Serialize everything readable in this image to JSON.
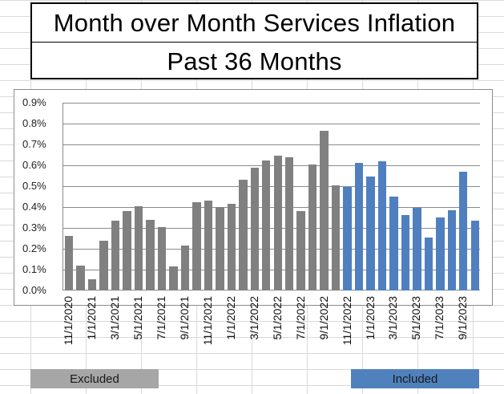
{
  "title": {
    "line1": "Month over Month Services Inflation",
    "line2": "Past 36 Months"
  },
  "colors": {
    "excluded": "#808080",
    "included": "#4f7fbf",
    "legend_excluded": "#a6a6a6",
    "legend_included": "#4f81bd"
  },
  "legend": {
    "excluded_label": "Excluded",
    "included_label": "Included"
  },
  "y_ticks": [
    "0.0%",
    "0.1%",
    "0.2%",
    "0.3%",
    "0.4%",
    "0.5%",
    "0.6%",
    "0.7%",
    "0.8%",
    "0.9%"
  ],
  "x_tick_labels": [
    "11/1/2020",
    "1/1/2021",
    "3/1/2021",
    "5/1/2021",
    "7/1/2021",
    "9/1/2021",
    "11/1/2021",
    "1/1/2022",
    "3/1/2022",
    "5/1/2022",
    "7/1/2022",
    "9/1/2022",
    "11/1/2022",
    "1/1/2023",
    "3/1/2023",
    "5/1/2023",
    "7/1/2023",
    "9/1/2023"
  ],
  "chart_data": {
    "type": "bar",
    "title": "Month over Month Services Inflation — Past 36 Months",
    "xlabel": "",
    "ylabel": "",
    "ylim": [
      0,
      0.9
    ],
    "y_unit": "%",
    "grid": true,
    "legend_position": "bottom (cell labels)",
    "categories": [
      "11/1/2020",
      "12/1/2020",
      "1/1/2021",
      "2/1/2021",
      "3/1/2021",
      "4/1/2021",
      "5/1/2021",
      "6/1/2021",
      "7/1/2021",
      "8/1/2021",
      "9/1/2021",
      "10/1/2021",
      "11/1/2021",
      "12/1/2021",
      "1/1/2022",
      "2/1/2022",
      "3/1/2022",
      "4/1/2022",
      "5/1/2022",
      "6/1/2022",
      "7/1/2022",
      "8/1/2022",
      "9/1/2022",
      "10/1/2022",
      "11/1/2022",
      "12/1/2022",
      "1/1/2023",
      "2/1/2023",
      "3/1/2023",
      "4/1/2023",
      "5/1/2023",
      "6/1/2023",
      "7/1/2023",
      "8/1/2023",
      "9/1/2023",
      "10/1/2023"
    ],
    "series": [
      {
        "name": "Excluded",
        "color": "#808080",
        "values": [
          0.26,
          0.12,
          0.055,
          0.24,
          0.335,
          0.38,
          0.405,
          0.34,
          0.305,
          0.115,
          0.215,
          0.425,
          0.43,
          0.4,
          0.415,
          0.53,
          0.59,
          0.625,
          0.645,
          0.64,
          0.38,
          0.605,
          0.765,
          0.505,
          null,
          null,
          null,
          null,
          null,
          null,
          null,
          null,
          null,
          null,
          null,
          null
        ]
      },
      {
        "name": "Included",
        "color": "#4f7fbf",
        "values": [
          null,
          null,
          null,
          null,
          null,
          null,
          null,
          null,
          null,
          null,
          null,
          null,
          null,
          null,
          null,
          null,
          null,
          null,
          null,
          null,
          null,
          null,
          null,
          null,
          0.495,
          0.61,
          0.545,
          0.62,
          0.45,
          0.36,
          0.395,
          0.255,
          0.35,
          0.385,
          0.57,
          0.335
        ]
      }
    ]
  }
}
